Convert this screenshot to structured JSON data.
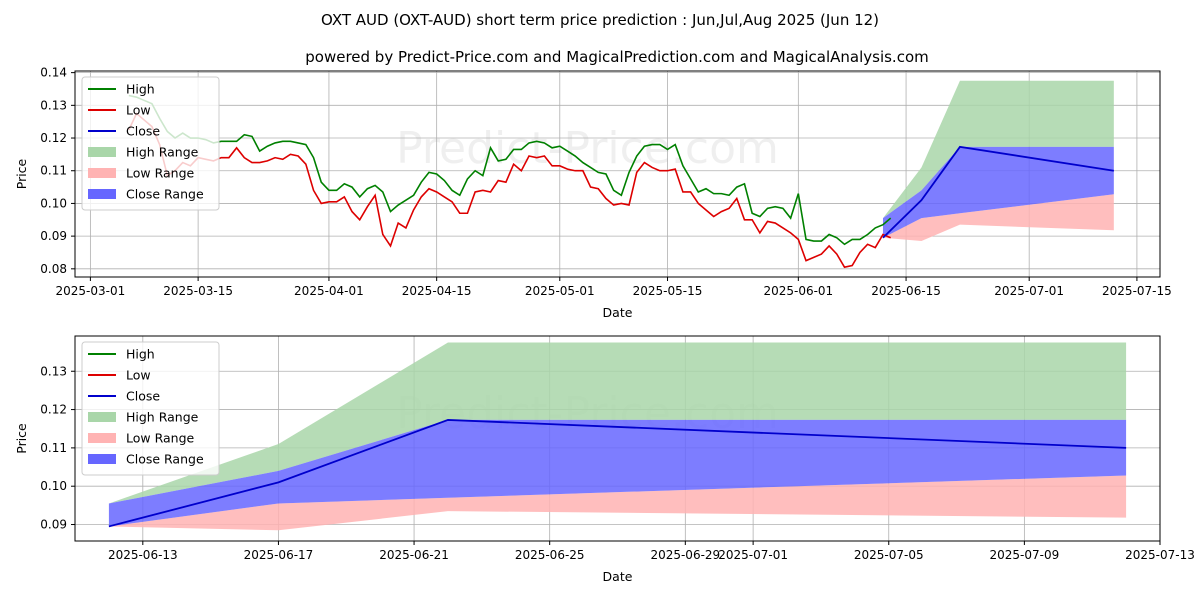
{
  "title": "OXT AUD (OXT-AUD) short term price prediction : Jun,Jul,Aug 2025 (Jun 12)",
  "subtitle": "powered by Predict-Price.com and MagicalPrediction.com and MagicalAnalysis.com",
  "watermark": "Predict-Price.com",
  "colors": {
    "high": "#008000",
    "low": "#dd0000",
    "close": "#0000cc",
    "high_range": "#a9d6a9",
    "low_range": "#ffb3b3",
    "close_range": "#6666ff",
    "grid": "#b0b0b0"
  },
  "chart_data": [
    {
      "type": "line",
      "panel": "history",
      "xlabel": "Date",
      "ylabel": "Price",
      "x_range": [
        "2025-02-27",
        "2025-07-18"
      ],
      "ylim": [
        0.0775,
        0.1405
      ],
      "x_ticks": [
        "2025-03-01",
        "2025-03-15",
        "2025-04-01",
        "2025-04-15",
        "2025-05-01",
        "2025-05-15",
        "2025-06-01",
        "2025-06-15",
        "2025-07-01",
        "2025-07-15"
      ],
      "y_ticks": [
        0.08,
        0.09,
        0.1,
        0.11,
        0.12,
        0.13,
        0.14
      ],
      "y_tick_labels": [
        "0.08",
        "0.09",
        "0.10",
        "0.11",
        "0.12",
        "0.13",
        "0.14"
      ],
      "legend": [
        "High",
        "Low",
        "Close",
        "High Range",
        "Low Range",
        "Close Range"
      ],
      "legend_position": "top-left",
      "history_start": "2025-03-06",
      "high": [
        0.133,
        0.1325,
        0.1315,
        0.1305,
        0.126,
        0.122,
        0.12,
        0.1215,
        0.12,
        0.12,
        0.1195,
        0.1185,
        0.119,
        0.119,
        0.119,
        0.121,
        0.1205,
        0.116,
        0.1175,
        0.1185,
        0.119,
        0.119,
        0.1185,
        0.118,
        0.114,
        0.1065,
        0.104,
        0.104,
        0.106,
        0.105,
        0.102,
        0.1045,
        0.1055,
        0.1035,
        0.0975,
        0.0995,
        0.101,
        0.1025,
        0.1065,
        0.1095,
        0.109,
        0.107,
        0.104,
        0.1025,
        0.1075,
        0.11,
        0.1085,
        0.117,
        0.113,
        0.1135,
        0.1165,
        0.1165,
        0.1185,
        0.119,
        0.1185,
        0.117,
        0.1175,
        0.116,
        0.1145,
        0.1125,
        0.111,
        0.1095,
        0.109,
        0.104,
        0.1025,
        0.1095,
        0.1145,
        0.1175,
        0.118,
        0.118,
        0.1165,
        0.118,
        0.1115,
        0.1075,
        0.1035,
        0.1045,
        0.103,
        0.103,
        0.1025,
        0.105,
        0.106,
        0.097,
        0.096,
        0.0985,
        0.099,
        0.0985,
        0.0955,
        0.103,
        0.089,
        0.0885,
        0.0885,
        0.0905,
        0.0895,
        0.0875,
        0.089,
        0.089,
        0.0905,
        0.0925,
        0.0935,
        0.0955
      ],
      "low": [
        0.1225,
        0.1275,
        0.1255,
        0.1235,
        0.118,
        0.1085,
        0.11,
        0.1125,
        0.1115,
        0.114,
        0.1135,
        0.113,
        0.114,
        0.114,
        0.117,
        0.114,
        0.1125,
        0.1125,
        0.113,
        0.114,
        0.1135,
        0.115,
        0.1145,
        0.112,
        0.104,
        0.1,
        0.1005,
        0.1005,
        0.102,
        0.0975,
        0.095,
        0.099,
        0.1025,
        0.0905,
        0.087,
        0.094,
        0.0925,
        0.098,
        0.102,
        0.1045,
        0.1035,
        0.102,
        0.1005,
        0.097,
        0.097,
        0.1035,
        0.104,
        0.1035,
        0.107,
        0.1065,
        0.112,
        0.11,
        0.1145,
        0.114,
        0.1145,
        0.1115,
        0.1115,
        0.1105,
        0.11,
        0.11,
        0.105,
        0.1045,
        0.1015,
        0.0995,
        0.1,
        0.0995,
        0.1095,
        0.1125,
        0.111,
        0.11,
        0.11,
        0.1105,
        0.1035,
        0.1035,
        0.1,
        0.098,
        0.096,
        0.0975,
        0.0985,
        0.1015,
        0.095,
        0.095,
        0.091,
        0.0945,
        0.094,
        0.0925,
        0.091,
        0.089,
        0.0825,
        0.0835,
        0.0845,
        0.087,
        0.0845,
        0.0805,
        0.081,
        0.085,
        0.0875,
        0.0865,
        0.0905,
        0.0895
      ],
      "forecast_dates": [
        "2025-06-12",
        "2025-06-17",
        "2025-06-22",
        "2025-07-12"
      ],
      "close_forecast": [
        0.0895,
        0.101,
        0.1173,
        0.11
      ],
      "high_range": {
        "upper": [
          0.0955,
          0.111,
          0.1375,
          0.1375
        ],
        "lower": [
          0.0955,
          0.104,
          0.1173,
          0.1173
        ]
      },
      "low_range": {
        "upper": [
          0.0895,
          0.0955,
          0.097,
          0.1028
        ],
        "lower": [
          0.0895,
          0.0885,
          0.0935,
          0.0918
        ]
      },
      "close_range": {
        "upper": [
          0.0955,
          0.104,
          0.1173,
          0.1173
        ],
        "lower": [
          0.0895,
          0.0955,
          0.097,
          0.1028
        ]
      }
    },
    {
      "type": "line",
      "panel": "forecast",
      "xlabel": "Date",
      "ylabel": "Price",
      "x_range": [
        "2025-06-11",
        "2025-07-13"
      ],
      "ylim": [
        0.0857,
        0.1392
      ],
      "x_ticks": [
        "2025-06-13",
        "2025-06-17",
        "2025-06-21",
        "2025-06-25",
        "2025-06-29",
        "2025-07-01",
        "2025-07-05",
        "2025-07-09",
        "2025-07-13"
      ],
      "y_ticks": [
        0.09,
        0.1,
        0.11,
        0.12,
        0.13
      ],
      "y_tick_labels": [
        "0.09",
        "0.10",
        "0.11",
        "0.12",
        "0.13"
      ],
      "legend": [
        "High",
        "Low",
        "Close",
        "High Range",
        "Low Range",
        "Close Range"
      ],
      "legend_position": "top-left",
      "forecast_dates": [
        "2025-06-12",
        "2025-06-17",
        "2025-06-22",
        "2025-07-12"
      ],
      "close_forecast": [
        0.0895,
        0.101,
        0.1173,
        0.11
      ],
      "high_range": {
        "upper": [
          0.0955,
          0.111,
          0.1375,
          0.1375
        ],
        "lower": [
          0.0955,
          0.104,
          0.1173,
          0.1173
        ]
      },
      "low_range": {
        "upper": [
          0.0895,
          0.0955,
          0.097,
          0.1028
        ],
        "lower": [
          0.0895,
          0.0885,
          0.0935,
          0.0918
        ]
      },
      "close_range": {
        "upper": [
          0.0955,
          0.104,
          0.1173,
          0.1173
        ],
        "lower": [
          0.0895,
          0.0955,
          0.097,
          0.1028
        ]
      }
    }
  ]
}
